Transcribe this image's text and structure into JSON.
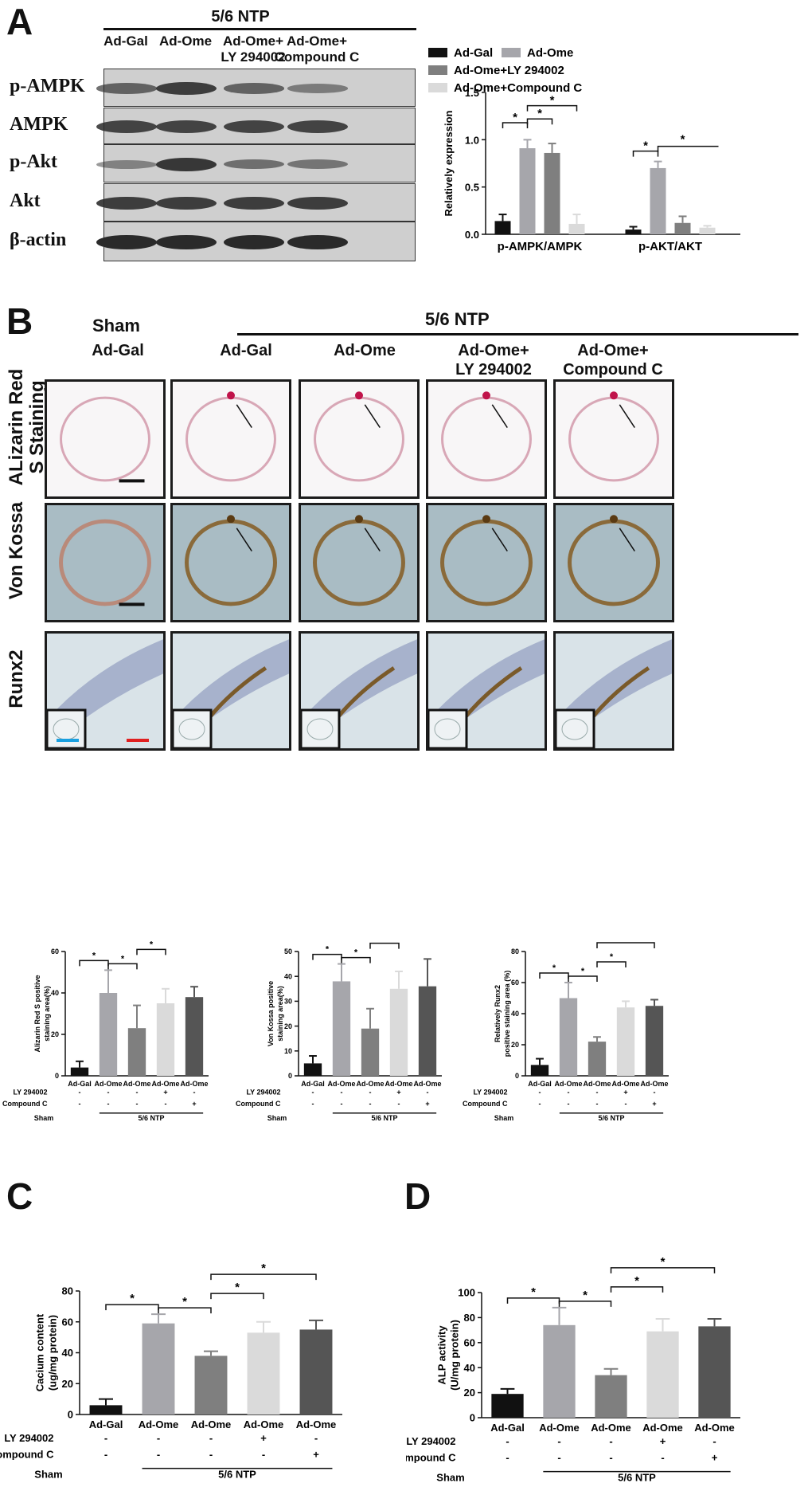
{
  "panels": {
    "A": "A",
    "B": "B",
    "C": "C",
    "D": "D"
  },
  "blot": {
    "group_header": "5/6 NTP",
    "columns": [
      "Ad-Gal",
      "Ad-Ome",
      "Ad-Ome+\nLY 294002",
      "Ad-Ome+\nCompound C"
    ],
    "rows": [
      "p-AMPK",
      "AMPK",
      "p-Akt",
      "Akt",
      "β-actin"
    ]
  },
  "histology": {
    "sham_label": "Sham",
    "ntp_label": "5/6 NTP",
    "columns": [
      "Ad-Gal",
      "Ad-Gal",
      "Ad-Ome",
      "Ad-Ome+\nLY 294002",
      "Ad-Ome+\nCompound C"
    ],
    "rows": [
      "ALizarin Red\nS Staining",
      "Von Kossa",
      "Runx2"
    ]
  },
  "colors": {
    "black": "#111111",
    "gray1": "#a6a6ab",
    "gray2": "#7f7f7f",
    "gray3": "#dadada",
    "gray4": "#555555",
    "alizarin_bg": "#f8f6f7",
    "kossa_bg": "#a9bcc4",
    "runx_bg": "#d9e3e8"
  },
  "chart_data": [
    {
      "id": "A",
      "type": "bar",
      "ylabel": "Relatively expression",
      "ylim": [
        0,
        1.5
      ],
      "yticks": [
        "0.0",
        "0.5",
        "1.0",
        "1.5"
      ],
      "categories": [
        "p-AMPK/AMPK",
        "p-AKT/AKT"
      ],
      "series": [
        {
          "name": "Ad-Gal",
          "values": [
            0.14,
            0.05
          ],
          "errors": [
            0.07,
            0.03
          ]
        },
        {
          "name": "Ad-Ome",
          "values": [
            0.91,
            0.7
          ],
          "errors": [
            0.09,
            0.07
          ]
        },
        {
          "name": "Ad-Ome+LY 294002",
          "values": [
            0.86,
            0.12
          ],
          "errors": [
            0.1,
            0.07
          ]
        },
        {
          "name": "Ad-Ome+Compound C",
          "values": [
            0.11,
            0.07
          ],
          "errors": [
            0.1,
            0.02
          ]
        }
      ],
      "legend": "top"
    },
    {
      "id": "B1",
      "type": "bar",
      "ylabel": "Alizarin Red S positive\nstaining area(%)",
      "ylim": [
        0,
        60
      ],
      "yticks": [
        "0",
        "20",
        "40",
        "60"
      ],
      "categories": [
        "Ad-Gal",
        "Ad-Ome",
        "Ad-Ome",
        "Ad-Ome",
        "Ad-Ome"
      ],
      "values": [
        4,
        40,
        23,
        35,
        38
      ],
      "errors": [
        3,
        11,
        11,
        7,
        5
      ],
      "LY 294002": [
        "-",
        "-",
        "-",
        "+",
        "-"
      ],
      "Compound C": [
        "-",
        "-",
        "-",
        "-",
        "+"
      ],
      "group_labels": [
        "Sham",
        "5/6 NTP"
      ]
    },
    {
      "id": "B2",
      "type": "bar",
      "ylabel": "Von Kossa positive\nstaining area(%)",
      "ylim": [
        0,
        50
      ],
      "yticks": [
        "0",
        "10",
        "20",
        "30",
        "40",
        "50"
      ],
      "categories": [
        "Ad-Gal",
        "Ad-Ome",
        "Ad-Ome",
        "Ad-Ome",
        "Ad-Ome"
      ],
      "values": [
        5,
        38,
        19,
        35,
        36
      ],
      "errors": [
        3,
        7,
        8,
        7,
        11
      ],
      "LY 294002": [
        "-",
        "-",
        "-",
        "+",
        "-"
      ],
      "Compound C": [
        "-",
        "-",
        "-",
        "-",
        "+"
      ],
      "group_labels": [
        "Sham",
        "5/6 NTP"
      ]
    },
    {
      "id": "B3",
      "type": "bar",
      "ylabel": "Relatively Runx2\npositive staining area (%)",
      "ylim": [
        0,
        80
      ],
      "yticks": [
        "0",
        "20",
        "40",
        "60",
        "80"
      ],
      "categories": [
        "Ad-Gal",
        "Ad-Ome",
        "Ad-Ome",
        "Ad-Ome",
        "Ad-Ome"
      ],
      "values": [
        7,
        50,
        22,
        44,
        45
      ],
      "errors": [
        4,
        10,
        3,
        4,
        4
      ],
      "LY 294002": [
        "-",
        "-",
        "-",
        "+",
        "-"
      ],
      "Compound C": [
        "-",
        "-",
        "-",
        "-",
        "+"
      ],
      "group_labels": [
        "Sham",
        "5/6 NTP"
      ]
    },
    {
      "id": "C",
      "type": "bar",
      "ylabel": "Cacium content\n(ug/mg protein)",
      "ylim": [
        0,
        80
      ],
      "yticks": [
        "0",
        "20",
        "40",
        "60",
        "80"
      ],
      "categories": [
        "Ad-Gal",
        "Ad-Ome",
        "Ad-Ome",
        "Ad-Ome",
        "Ad-Ome"
      ],
      "values": [
        6,
        59,
        38,
        53,
        55
      ],
      "errors": [
        4,
        6,
        3,
        7,
        6
      ],
      "LY 294002": [
        "-",
        "-",
        "-",
        "+",
        "-"
      ],
      "Compound C": [
        "-",
        "-",
        "-",
        "-",
        "+"
      ],
      "group_labels": [
        "Sham",
        "5/6 NTP"
      ]
    },
    {
      "id": "D",
      "type": "bar",
      "ylabel": "ALP activity\n(U/mg protein)",
      "ylim": [
        0,
        100
      ],
      "yticks": [
        "0",
        "20",
        "40",
        "60",
        "80",
        "100"
      ],
      "categories": [
        "Ad-Gal",
        "Ad-Ome",
        "Ad-Ome",
        "Ad-Ome",
        "Ad-Ome"
      ],
      "values": [
        19,
        74,
        34,
        69,
        73
      ],
      "errors": [
        4,
        14,
        5,
        10,
        6
      ],
      "LY 294002": [
        "-",
        "-",
        "-",
        "+",
        "-"
      ],
      "Compound C": [
        "-",
        "-",
        "-",
        "-",
        "+"
      ],
      "group_labels": [
        "Sham",
        "5/6 NTP"
      ]
    }
  ],
  "sig_mark": "*"
}
